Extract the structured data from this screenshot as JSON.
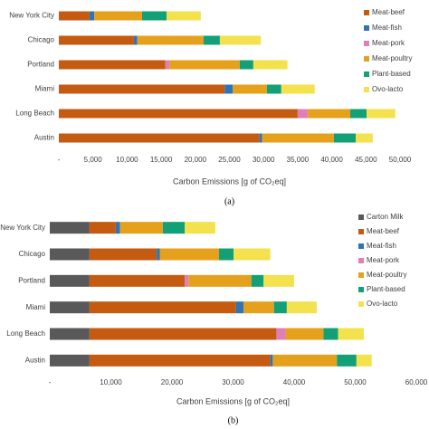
{
  "chart_data": [
    {
      "type": "stacked-bar-horizontal",
      "caption": "(a)",
      "x_label": "Carbon Emissions [g of CO₂eq]",
      "categories": [
        "New York City",
        "Chicago",
        "Portland",
        "Miami",
        "Long Beach",
        "Austin"
      ],
      "series": [
        {
          "name": "Meat-beef",
          "color": "#c55a11",
          "values": [
            4500,
            11000,
            15600,
            24300,
            35000,
            29400
          ]
        },
        {
          "name": "Meat-fish",
          "color": "#2e75b6",
          "values": [
            700,
            500,
            0,
            1200,
            0,
            400
          ]
        },
        {
          "name": "Meat-pork",
          "color": "#e07fb7",
          "values": [
            0,
            0,
            600,
            0,
            1500,
            0
          ]
        },
        {
          "name": "Meat-poultry",
          "color": "#e5a11b",
          "values": [
            7000,
            9700,
            10300,
            5000,
            6200,
            10500
          ]
        },
        {
          "name": "Plant-based",
          "color": "#13a077",
          "values": [
            3600,
            2400,
            2000,
            2100,
            2400,
            3200
          ]
        },
        {
          "name": "Ovo-lacto",
          "color": "#f3e24d",
          "values": [
            5000,
            6000,
            5000,
            4900,
            4200,
            2500
          ]
        }
      ],
      "xlim": [
        0,
        50000
      ],
      "xticks": [
        {
          "value": 0,
          "label": "-"
        },
        {
          "value": 5000,
          "label": "5,000"
        },
        {
          "value": 10000,
          "label": "10,000"
        },
        {
          "value": 15000,
          "label": "15,000"
        },
        {
          "value": 20000,
          "label": "20,000"
        },
        {
          "value": 25000,
          "label": "25,000"
        },
        {
          "value": 30000,
          "label": "30,000"
        },
        {
          "value": 35000,
          "label": "35,000"
        },
        {
          "value": 40000,
          "label": "40,000"
        },
        {
          "value": 45000,
          "label": "45,000"
        },
        {
          "value": 50000,
          "label": "50,000"
        }
      ],
      "grid": false,
      "legend": "right"
    },
    {
      "type": "stacked-bar-horizontal",
      "caption": "(b)",
      "x_label": "Carbon Emissions [g of CO₂eq]",
      "categories": [
        "New York City",
        "Chicago",
        "Portland",
        "Miami",
        "Long Beach",
        "Austin"
      ],
      "series": [
        {
          "name": "Carton Milk",
          "color": "#595959",
          "values": [
            6500,
            6500,
            6500,
            6500,
            6500,
            6500
          ]
        },
        {
          "name": "Meat-beef",
          "color": "#c55a11",
          "values": [
            4300,
            11000,
            15600,
            24000,
            30600,
            29600
          ]
        },
        {
          "name": "Meat-fish",
          "color": "#2e75b6",
          "values": [
            700,
            500,
            0,
            1200,
            0,
            400
          ]
        },
        {
          "name": "Meat-pork",
          "color": "#e07fb7",
          "values": [
            0,
            0,
            600,
            0,
            1500,
            0
          ]
        },
        {
          "name": "Meat-poultry",
          "color": "#e5a11b",
          "values": [
            7000,
            9700,
            10300,
            5000,
            6200,
            10500
          ]
        },
        {
          "name": "Plant-based",
          "color": "#13a077",
          "values": [
            3600,
            2400,
            2000,
            2100,
            2400,
            3200
          ]
        },
        {
          "name": "Ovo-lacto",
          "color": "#f3e24d",
          "values": [
            5000,
            6000,
            5000,
            4900,
            4200,
            2500
          ]
        }
      ],
      "xlim": [
        0,
        60000
      ],
      "xticks": [
        {
          "value": 0,
          "label": "-"
        },
        {
          "value": 10000,
          "label": "10,000"
        },
        {
          "value": 20000,
          "label": "20,000"
        },
        {
          "value": 30000,
          "label": "30,000"
        },
        {
          "value": 40000,
          "label": "40,000"
        },
        {
          "value": 50000,
          "label": "50,000"
        },
        {
          "value": 60000,
          "label": "60,000"
        }
      ],
      "grid": false,
      "legend": "right"
    }
  ]
}
